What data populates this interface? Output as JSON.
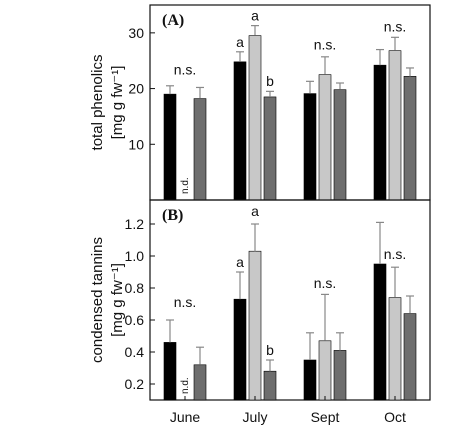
{
  "colors": {
    "series": [
      "#000000",
      "#c8c8c8",
      "#6e6e6e"
    ],
    "axis": "#111111",
    "error_bar": "#888888"
  },
  "categories": [
    "June",
    "July",
    "Sept",
    "Oct"
  ],
  "chart_data": [
    {
      "type": "bar",
      "panel_label": "(A)",
      "ylabel": [
        "total phenolics",
        "[mg g fw⁻¹]"
      ],
      "ylim": [
        0,
        35
      ],
      "yticks": [
        10,
        20,
        30
      ],
      "categories": [
        "June",
        "July",
        "Sept",
        "Oct"
      ],
      "series": [
        {
          "values": [
            19.0,
            24.8,
            19.1,
            24.2
          ],
          "errors": [
            1.5,
            1.8,
            2.2,
            2.8
          ]
        },
        {
          "values": [
            null,
            29.5,
            22.5,
            26.8
          ],
          "errors": [
            null,
            1.8,
            3.2,
            2.4
          ]
        },
        {
          "values": [
            18.2,
            18.5,
            19.8,
            22.2
          ],
          "errors": [
            2.0,
            1.0,
            1.2,
            1.5
          ]
        }
      ],
      "not_detected": [
        {
          "category": 0,
          "series": 1,
          "text": "n.d."
        }
      ],
      "annotations": [
        {
          "category": 0,
          "text": "n.s.",
          "y": 22.5
        },
        {
          "category": 1,
          "series": 0,
          "text": "a",
          "y": 27.5
        },
        {
          "category": 1,
          "series": 1,
          "text": "a",
          "y": 32.2
        },
        {
          "category": 1,
          "series": 2,
          "text": "b",
          "y": 20.5
        },
        {
          "category": 2,
          "text": "n.s.",
          "y": 27.0
        },
        {
          "category": 3,
          "text": "n.s.",
          "y": 30.2
        }
      ]
    },
    {
      "type": "bar",
      "panel_label": "(B)",
      "ylabel": [
        "condensed tannins",
        "[mg g fw⁻¹]"
      ],
      "ylim": [
        0.1,
        1.35
      ],
      "yticks": [
        0.2,
        0.4,
        0.6,
        0.8,
        1.0,
        1.2
      ],
      "yticklabels": [
        "0.2",
        "0.4",
        "0.6",
        "0.8",
        "1.0",
        "1.2"
      ],
      "categories": [
        "June",
        "July",
        "Sept",
        "Oct"
      ],
      "series": [
        {
          "values": [
            0.46,
            0.73,
            0.35,
            0.95
          ],
          "errors": [
            0.14,
            0.17,
            0.17,
            0.26
          ]
        },
        {
          "values": [
            null,
            1.03,
            0.47,
            0.74
          ],
          "errors": [
            null,
            0.17,
            0.29,
            0.19
          ]
        },
        {
          "values": [
            0.32,
            0.28,
            0.41,
            0.64
          ],
          "errors": [
            0.11,
            0.07,
            0.11,
            0.11
          ]
        }
      ],
      "not_detected": [
        {
          "category": 0,
          "series": 1,
          "text": "n.d."
        }
      ],
      "annotations": [
        {
          "category": 0,
          "text": "n.s.",
          "y": 0.68
        },
        {
          "category": 1,
          "series": 0,
          "text": "a",
          "y": 0.93
        },
        {
          "category": 1,
          "series": 1,
          "text": "a",
          "y": 1.25
        },
        {
          "category": 1,
          "series": 2,
          "text": "b",
          "y": 0.38
        },
        {
          "category": 2,
          "text": "n.s.",
          "y": 0.8
        },
        {
          "category": 3,
          "text": "n.s.",
          "y": 0.98
        }
      ]
    }
  ]
}
